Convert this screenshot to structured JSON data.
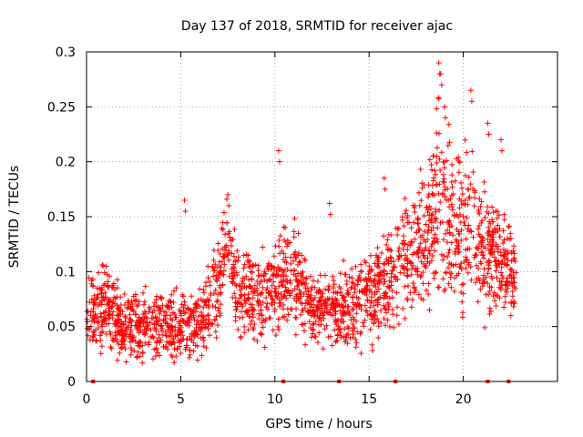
{
  "chart_data": {
    "type": "scatter",
    "title": "Day 137 of 2018, SRMTID for receiver ajac",
    "xlabel": "GPS time / hours",
    "ylabel": "SRMTID / TECUs",
    "xlim": [
      0,
      25
    ],
    "ylim": [
      0,
      0.3
    ],
    "xticks": [
      0,
      5,
      10,
      15,
      20
    ],
    "yticks": [
      0,
      0.05,
      0.1,
      0.15,
      0.2,
      0.25,
      0.3
    ],
    "xtick_labels": [
      "0",
      "5",
      "10",
      "15",
      "20"
    ],
    "ytick_labels": [
      "0",
      "0.05",
      "0.1",
      "0.15",
      "0.2",
      "0.25",
      "0.3"
    ],
    "grid": true,
    "marker": "+",
    "color": "#ff0000",
    "gap_markers_x": [
      0.35,
      10.45,
      13.4,
      16.4,
      21.3,
      22.4
    ],
    "series_envelope": {
      "name": "SRMTID",
      "x": [
        0,
        1,
        2,
        3,
        4,
        5,
        6,
        7,
        7.5,
        8,
        9,
        10,
        11,
        12,
        13,
        14,
        15,
        16,
        17,
        18,
        18.7,
        19,
        20,
        20.5,
        21,
        22,
        22.8
      ],
      "median": [
        0.06,
        0.07,
        0.05,
        0.05,
        0.055,
        0.05,
        0.05,
        0.09,
        0.13,
        0.08,
        0.075,
        0.09,
        0.1,
        0.065,
        0.065,
        0.07,
        0.08,
        0.09,
        0.11,
        0.13,
        0.17,
        0.16,
        0.14,
        0.15,
        0.12,
        0.11,
        0.09
      ],
      "spread": [
        0.02,
        0.025,
        0.02,
        0.02,
        0.02,
        0.02,
        0.02,
        0.03,
        0.025,
        0.025,
        0.025,
        0.03,
        0.03,
        0.02,
        0.02,
        0.025,
        0.03,
        0.03,
        0.035,
        0.04,
        0.06,
        0.05,
        0.05,
        0.05,
        0.04,
        0.03,
        0.03
      ],
      "peaks": [
        [
          10.2,
          0.21
        ],
        [
          18.7,
          0.29
        ],
        [
          18.8,
          0.28
        ],
        [
          20.4,
          0.265
        ],
        [
          21.3,
          0.235
        ],
        [
          22.0,
          0.22
        ],
        [
          19.0,
          0.25
        ],
        [
          5.2,
          0.165
        ],
        [
          7.5,
          0.17
        ],
        [
          12.9,
          0.162
        ],
        [
          15.8,
          0.185
        ]
      ]
    }
  }
}
